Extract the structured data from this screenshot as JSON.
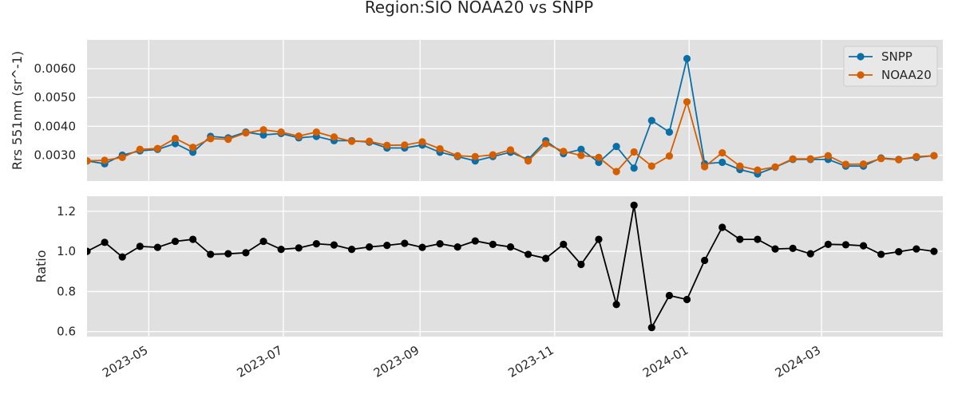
{
  "title": "Region:SIO NOAA20 vs SNPP",
  "colors": {
    "panel_bg": "#e0e0e0",
    "grid": "#ffffff",
    "snpp": "#0a6fa6",
    "noaa20": "#d55e00",
    "ratio": "#000000"
  },
  "chart_data": [
    {
      "type": "line",
      "ylabel": "Rrs 551nm (sr^-1)",
      "ylim": [
        0.0021,
        0.007
      ],
      "yticks": [
        "0.0030",
        "0.0040",
        "0.0050",
        "0.0060"
      ],
      "xlim": [
        "2023-04-03",
        "2024-04-25"
      ],
      "legend_position": "top-right",
      "grid": true,
      "x": [
        "2023-04-03",
        "2023-04-11",
        "2023-04-19",
        "2023-04-27",
        "2023-05-05",
        "2023-05-13",
        "2023-05-21",
        "2023-05-29",
        "2023-06-06",
        "2023-06-14",
        "2023-06-22",
        "2023-06-30",
        "2023-07-08",
        "2023-07-16",
        "2023-07-24",
        "2023-08-01",
        "2023-08-09",
        "2023-08-17",
        "2023-08-25",
        "2023-09-02",
        "2023-09-10",
        "2023-09-18",
        "2023-09-26",
        "2023-10-04",
        "2023-10-12",
        "2023-10-20",
        "2023-10-28",
        "2023-11-05",
        "2023-11-13",
        "2023-11-21",
        "2023-11-29",
        "2023-12-07",
        "2023-12-15",
        "2023-12-23",
        "2023-12-31",
        "2024-01-08",
        "2024-01-16",
        "2024-01-24",
        "2024-02-01",
        "2024-02-09",
        "2024-02-17",
        "2024-02-25",
        "2024-03-04",
        "2024-03-12",
        "2024-03-20",
        "2024-03-28",
        "2024-04-05",
        "2024-04-13",
        "2024-04-21"
      ],
      "series": [
        {
          "name": "SNPP",
          "values": [
            0.0028,
            0.0027,
            0.003,
            0.00315,
            0.0032,
            0.0034,
            0.0031,
            0.00365,
            0.0036,
            0.0038,
            0.0037,
            0.00375,
            0.0036,
            0.00365,
            0.0035,
            0.0035,
            0.00345,
            0.00325,
            0.00325,
            0.00335,
            0.0031,
            0.00295,
            0.0028,
            0.00295,
            0.0031,
            0.00285,
            0.0035,
            0.00305,
            0.0032,
            0.00275,
            0.0033,
            0.00255,
            0.0042,
            0.0038,
            0.00635,
            0.0027,
            0.00275,
            0.0025,
            0.00235,
            0.00258,
            0.00285,
            0.00285,
            0.00285,
            0.00262,
            0.00262,
            0.0029,
            0.00285,
            0.00292,
            0.00298
          ]
        },
        {
          "name": "NOAA20",
          "values": [
            0.0028,
            0.00282,
            0.00292,
            0.0032,
            0.00323,
            0.00358,
            0.00327,
            0.00357,
            0.00355,
            0.00377,
            0.00388,
            0.0038,
            0.00366,
            0.0038,
            0.00363,
            0.00348,
            0.00348,
            0.00334,
            0.00335,
            0.00346,
            0.00322,
            0.00298,
            0.00295,
            0.00301,
            0.00318,
            0.0028,
            0.0034,
            0.00313,
            0.00299,
            0.00292,
            0.00243,
            0.00311,
            0.00262,
            0.00297,
            0.00485,
            0.0026,
            0.00308,
            0.00262,
            0.00248,
            0.00259,
            0.00287,
            0.00287,
            0.00298,
            0.00268,
            0.00269,
            0.00288,
            0.00284,
            0.00295,
            0.00298
          ]
        }
      ]
    },
    {
      "type": "line",
      "ylabel": "Ratio",
      "ylim": [
        0.575,
        1.275
      ],
      "yticks": [
        "0.6",
        "0.8",
        "1.0",
        "1.2"
      ],
      "xlim": [
        "2023-04-03",
        "2024-04-25"
      ],
      "xticks": [
        "2023-05",
        "2023-07",
        "2023-09",
        "2023-11",
        "2024-01",
        "2024-03"
      ],
      "grid": true,
      "series": [
        {
          "values": [
            1.0,
            1.045,
            0.972,
            1.025,
            1.02,
            1.05,
            1.06,
            0.985,
            0.988,
            0.993,
            1.05,
            1.01,
            1.017,
            1.038,
            1.032,
            1.01,
            1.022,
            1.03,
            1.04,
            1.02,
            1.038,
            1.022,
            1.052,
            1.035,
            1.022,
            0.985,
            0.965,
            1.035,
            0.935,
            1.06,
            0.735,
            1.23,
            0.62,
            0.78,
            0.76,
            0.955,
            1.12,
            1.06,
            1.06,
            1.012,
            1.015,
            0.988,
            1.035,
            1.033,
            1.028,
            0.985,
            0.998,
            1.012,
            1.0
          ]
        }
      ]
    }
  ]
}
